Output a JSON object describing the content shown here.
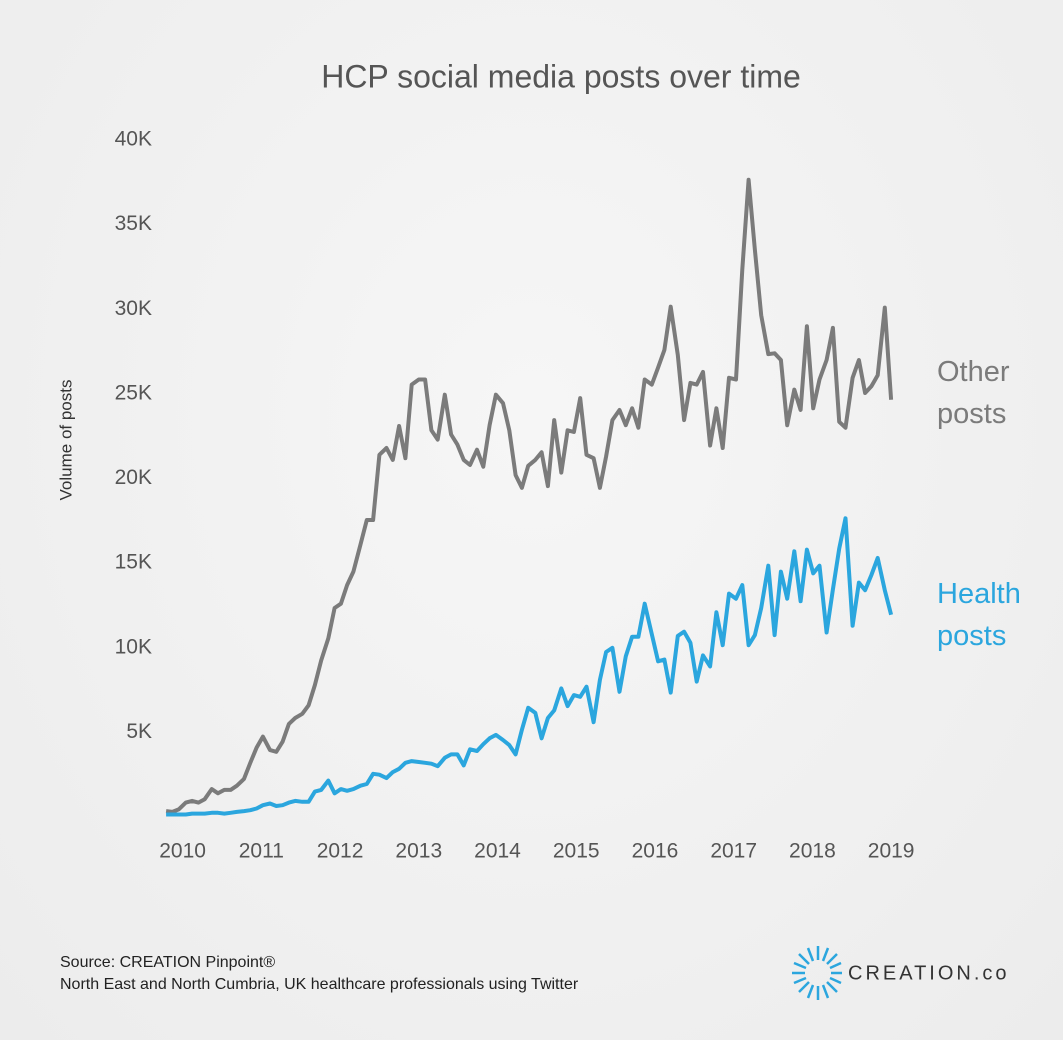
{
  "chart_data": {
    "type": "line",
    "title": "HCP social media posts over time",
    "y_label": "Volume of posts",
    "source": "Source: CREATION Pinpoint®",
    "note": "North East and North Cumbria, UK healthcare professionals using Twitter",
    "logo": "CREATION.co",
    "xlim": [
      2009.7,
      2019.1
    ],
    "xticks": [
      2010,
      2011,
      2012,
      2013,
      2014,
      2015,
      2016,
      2017,
      2018,
      2019
    ],
    "ylim": [
      0,
      40000
    ],
    "yticks": [
      {
        "value": 5000,
        "label": "5K"
      },
      {
        "value": 10000,
        "label": "10K"
      },
      {
        "value": 15000,
        "label": "15K"
      },
      {
        "value": 20000,
        "label": "20K"
      },
      {
        "value": 25000,
        "label": "25K"
      },
      {
        "value": 30000,
        "label": "30K"
      },
      {
        "value": 35000,
        "label": "35K"
      },
      {
        "value": 40000,
        "label": "40K"
      }
    ],
    "grid": false,
    "x": [
      2009.79,
      2009.87,
      2009.95,
      2010.04,
      2010.12,
      2010.2,
      2010.28,
      2010.37,
      2010.45,
      2010.53,
      2010.61,
      2010.69,
      2010.78,
      2010.86,
      2010.94,
      2011.02,
      2011.11,
      2011.19,
      2011.27,
      2011.35,
      2011.43,
      2011.52,
      2011.6,
      2011.68,
      2011.76,
      2011.85,
      2011.93,
      2012.01,
      2012.09,
      2012.17,
      2012.26,
      2012.34,
      2012.42,
      2012.5,
      2012.59,
      2012.67,
      2012.75,
      2012.83,
      2012.91,
      2013.0,
      2013.08,
      2013.16,
      2013.24,
      2013.33,
      2013.41,
      2013.49,
      2013.57,
      2013.65,
      2013.74,
      2013.82,
      2013.9,
      2013.98,
      2014.07,
      2014.15,
      2014.23,
      2014.31,
      2014.39,
      2014.48,
      2014.56,
      2014.64,
      2014.72,
      2014.81,
      2014.89,
      2014.97,
      2015.05,
      2015.13,
      2015.22,
      2015.3,
      2015.38,
      2015.46,
      2015.55,
      2015.63,
      2015.71,
      2015.79,
      2015.87,
      2015.96,
      2016.04,
      2016.12,
      2016.2,
      2016.29,
      2016.37,
      2016.45,
      2016.53,
      2016.61,
      2016.7,
      2016.78,
      2016.86,
      2016.94,
      2017.03,
      2017.11,
      2017.19,
      2017.27,
      2017.35,
      2017.44,
      2017.52,
      2017.6,
      2017.68,
      2017.77,
      2017.85,
      2017.93,
      2018.01,
      2018.09,
      2018.18,
      2018.26,
      2018.34,
      2018.42,
      2018.51,
      2018.59,
      2018.67,
      2018.75,
      2018.83,
      2018.92,
      2019.0
    ],
    "series": [
      {
        "name": "Other posts",
        "color": "#7b7b7b",
        "values": [
          350,
          300,
          450,
          850,
          950,
          850,
          1050,
          1650,
          1400,
          1600,
          1600,
          1850,
          2250,
          3200,
          4100,
          4750,
          3950,
          3850,
          4450,
          5500,
          5850,
          6100,
          6600,
          7800,
          9250,
          10550,
          12350,
          12600,
          13700,
          14500,
          16100,
          17550,
          17550,
          21400,
          21800,
          21100,
          23100,
          21200,
          25550,
          25850,
          25850,
          22850,
          22300,
          24950,
          22600,
          22000,
          21100,
          20800,
          21700,
          20700,
          23150,
          24950,
          24450,
          22850,
          20200,
          19450,
          20750,
          21100,
          21550,
          19550,
          23450,
          20350,
          22850,
          22750,
          24750,
          21400,
          21200,
          19450,
          21300,
          23450,
          24050,
          23150,
          24150,
          23000,
          25850,
          25550,
          26550,
          27600,
          30150,
          27300,
          23450,
          25650,
          25550,
          26300,
          21950,
          24150,
          21800,
          25950,
          25850,
          32350,
          37650,
          33500,
          29650,
          27350,
          27400,
          27000,
          23150,
          25250,
          24050,
          29000,
          24150,
          25850,
          27000,
          28900,
          23350,
          23000,
          25950,
          27000,
          25050,
          25450,
          26100,
          30100,
          24650
        ]
      },
      {
        "name": "Health posts",
        "color": "#2ba6de",
        "values": [
          150,
          150,
          150,
          150,
          200,
          200,
          200,
          250,
          250,
          200,
          250,
          300,
          350,
          400,
          500,
          700,
          800,
          650,
          700,
          850,
          950,
          900,
          900,
          1500,
          1600,
          2150,
          1400,
          1650,
          1550,
          1650,
          1850,
          1950,
          2550,
          2500,
          2300,
          2650,
          2850,
          3200,
          3300,
          3250,
          3200,
          3150,
          3000,
          3500,
          3700,
          3700,
          3050,
          4000,
          3900,
          4300,
          4650,
          4850,
          4550,
          4250,
          3700,
          5150,
          6450,
          6150,
          4650,
          5850,
          6300,
          7600,
          6550,
          7200,
          7100,
          7700,
          5600,
          8100,
          9750,
          10000,
          7400,
          9500,
          10650,
          10650,
          12600,
          10800,
          9200,
          9300,
          7350,
          10700,
          10950,
          10300,
          8000,
          9550,
          8900,
          12100,
          10150,
          13200,
          12900,
          13700,
          10150,
          10750,
          12350,
          14850,
          10750,
          14500,
          12900,
          15700,
          12750,
          15800,
          14400,
          14850,
          10900,
          13450,
          15850,
          17650,
          11300,
          13850,
          13400,
          14300,
          15300,
          13400,
          11950
        ]
      }
    ]
  }
}
